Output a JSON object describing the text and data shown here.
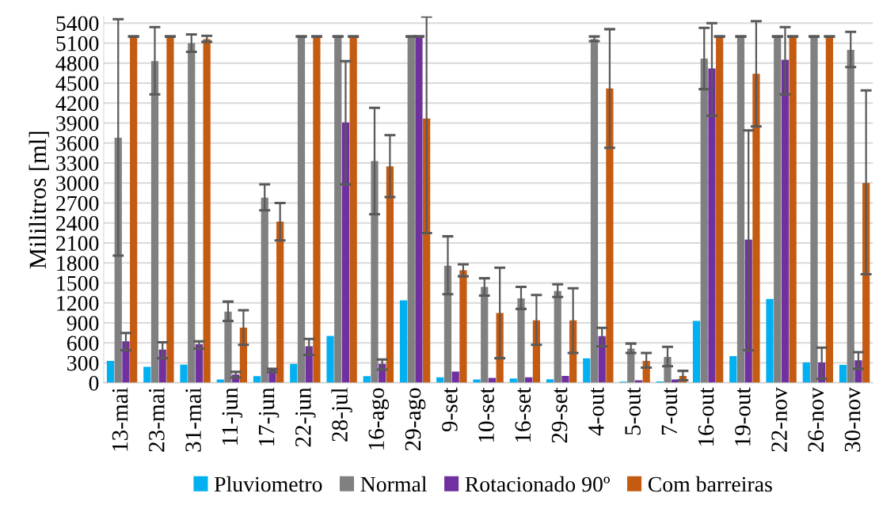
{
  "chart_data": {
    "type": "bar",
    "ylabel": "Mililitros [ml]",
    "categories": [
      "13-mai",
      "23-mai",
      "31-mai",
      "11-jun",
      "17-jun",
      "22-jun",
      "28-jul",
      "16-ago",
      "29-ago",
      "9-set",
      "10-set",
      "16-set",
      "29-set",
      "4-out",
      "5-out",
      "7-out",
      "16-out",
      "19-out",
      "22-nov",
      "26-nov",
      "30-nov"
    ],
    "series": [
      {
        "name": "Pluviometro",
        "color": "#00b0f0",
        "values": [
          330,
          240,
          275,
          50,
          100,
          285,
          705,
          100,
          1240,
          85,
          50,
          65,
          55,
          370,
          17,
          21,
          930,
          400,
          1260,
          305,
          270
        ]
      },
      {
        "name": "Normal",
        "color": "#808080",
        "values": [
          3680,
          4830,
          5100,
          1070,
          2780,
          5200,
          5200,
          3330,
          5200,
          1760,
          1440,
          1270,
          1380,
          5160,
          515,
          390,
          4870,
          5200,
          5200,
          5200,
          5000
        ],
        "errors": [
          [
            1910,
            5460
          ],
          [
            4330,
            5340
          ],
          [
            4970,
            5230
          ],
          [
            930,
            1220
          ],
          [
            2590,
            2980
          ],
          [
            5200,
            5200
          ],
          [
            5200,
            5200
          ],
          [
            2530,
            4130
          ],
          [
            5200,
            5200
          ],
          [
            1330,
            2200
          ],
          [
            1310,
            1570
          ],
          [
            1110,
            1440
          ],
          [
            1290,
            1480
          ],
          [
            5130,
            5200
          ],
          [
            450,
            590
          ],
          [
            250,
            540
          ],
          [
            4410,
            5330
          ],
          [
            5200,
            5200
          ],
          [
            5200,
            5200
          ],
          [
            5200,
            5200
          ],
          [
            4740,
            5270
          ]
        ]
      },
      {
        "name": "Rotacionado 90º",
        "color": "#7030a0",
        "values": [
          625,
          500,
          580,
          125,
          205,
          550,
          3910,
          285,
          5200,
          170,
          75,
          85,
          105,
          700,
          40,
          50,
          4720,
          2150,
          4850,
          305,
          340
        ],
        "errors": [
          [
            490,
            750
          ],
          [
            370,
            610
          ],
          [
            515,
            625
          ],
          [
            80,
            165
          ],
          [
            160,
            210
          ],
          [
            420,
            660
          ],
          [
            2980,
            4830
          ],
          [
            200,
            350
          ],
          [
            5200,
            5200
          ],
          null,
          null,
          null,
          null,
          [
            550,
            825
          ],
          null,
          null,
          [
            4010,
            5400
          ],
          [
            490,
            3790
          ],
          [
            4330,
            5340
          ],
          [
            60,
            530
          ],
          [
            210,
            460
          ]
        ]
      },
      {
        "name": "Com barreiras",
        "color": "#c55a11",
        "values": [
          5200,
          5200,
          5160,
          830,
          2420,
          5200,
          5200,
          3250,
          3970,
          1690,
          1050,
          940,
          940,
          4420,
          330,
          105,
          5200,
          4640,
          5200,
          5200,
          3000
        ],
        "errors": [
          [
            5200,
            5200
          ],
          [
            5200,
            5200
          ],
          [
            5120,
            5210
          ],
          [
            570,
            1090
          ],
          [
            2140,
            2700
          ],
          [
            5200,
            5200
          ],
          [
            5200,
            5200
          ],
          [
            2790,
            3720
          ],
          [
            2250,
            5500
          ],
          [
            1600,
            1780
          ],
          [
            370,
            1730
          ],
          [
            570,
            1320
          ],
          [
            450,
            1420
          ],
          [
            3530,
            5310
          ],
          [
            230,
            450
          ],
          [
            40,
            180
          ],
          [
            5200,
            5200
          ],
          [
            3850,
            5430
          ],
          [
            5200,
            5200
          ],
          [
            5200,
            5200
          ],
          [
            1630,
            4390
          ]
        ]
      }
    ],
    "ylim": [
      0,
      5500
    ],
    "yticks": [
      0,
      300,
      600,
      900,
      1200,
      1500,
      1800,
      2100,
      2400,
      2700,
      3000,
      3300,
      3600,
      3900,
      4200,
      4500,
      4800,
      5100,
      5400
    ],
    "grid": "y",
    "legend": "bottom"
  }
}
